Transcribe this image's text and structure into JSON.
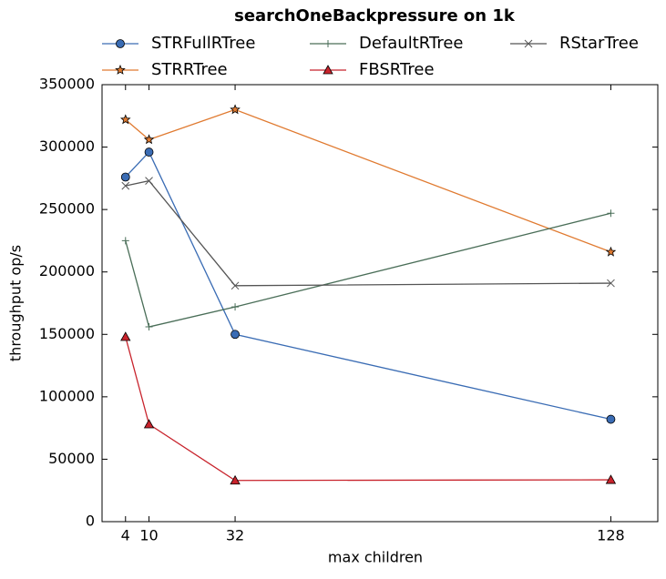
{
  "chart_data": {
    "type": "line",
    "title": "searchOneBackpressure on 1k",
    "x_label": "max children",
    "y_label": "throughput op/s",
    "x": [
      4,
      10,
      32,
      128
    ],
    "series": [
      {
        "name": "STRFullRTree",
        "color": "#3a6cb4",
        "marker": "o",
        "values": [
          276000,
          296000,
          150000,
          82000
        ]
      },
      {
        "name": "STRRTree",
        "color": "#e07a30",
        "marker": "*",
        "values": [
          322000,
          306000,
          330000,
          216000
        ]
      },
      {
        "name": "DefaultRTree",
        "color": "#4a6e58",
        "marker": "+",
        "values": [
          225000,
          156000,
          172000,
          247000
        ]
      },
      {
        "name": "FBSRTree",
        "color": "#c8232c",
        "marker": "^",
        "values": [
          148000,
          78000,
          33000,
          33500
        ]
      },
      {
        "name": "RStarTree",
        "color": "#555555",
        "marker": "x",
        "values": [
          269000,
          273000,
          189000,
          191000
        ]
      }
    ],
    "xlim": [
      -2,
      140
    ],
    "xticks": [
      4,
      10,
      32,
      128
    ],
    "ylim": [
      0,
      350000
    ],
    "yticks": [
      0,
      50000,
      100000,
      150000,
      200000,
      250000,
      300000,
      350000
    ],
    "legend_columns": 3,
    "grid": false
  }
}
